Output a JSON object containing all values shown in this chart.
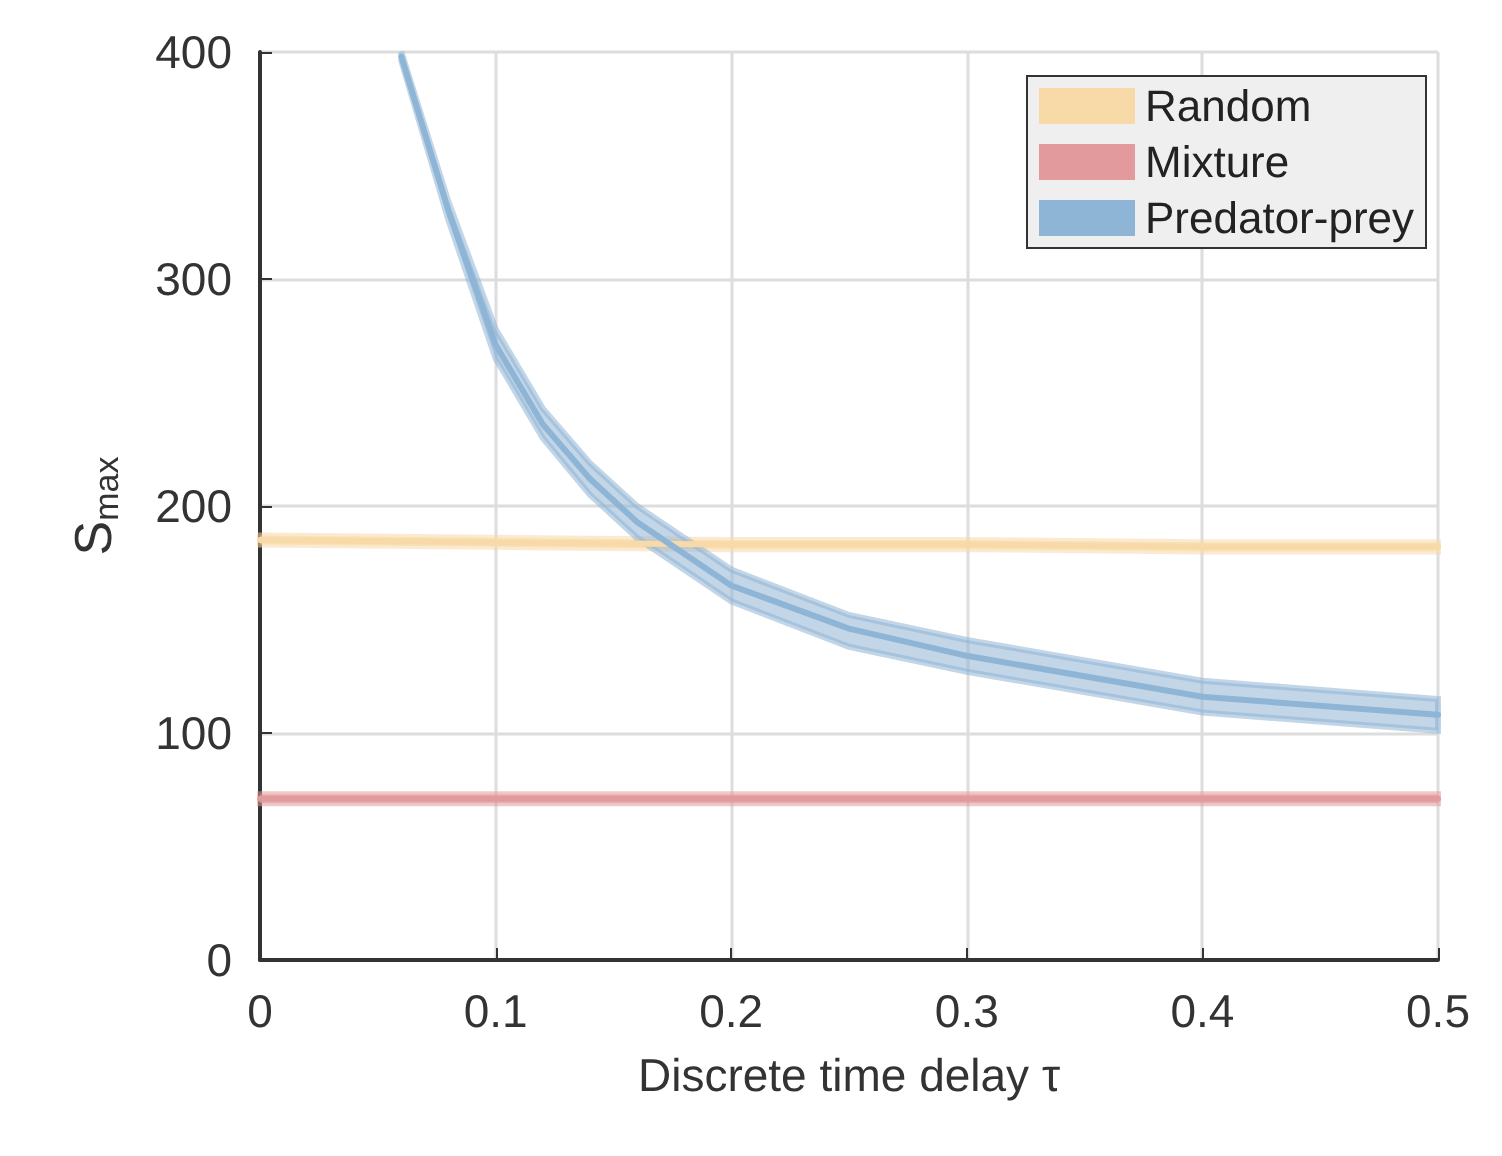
{
  "chart_data": {
    "type": "line",
    "xlabel": "Discrete time delay τ",
    "ylabel": "S$_{max}$",
    "xlim": [
      0,
      0.5
    ],
    "xticks": [
      0,
      0.1,
      0.2,
      0.3,
      0.4,
      0.5
    ],
    "ylim": [
      0,
      400
    ],
    "yticks": [
      0,
      100,
      200,
      300,
      400
    ],
    "grid": true,
    "legend": "top right",
    "series": [
      {
        "name": "Random",
        "color": "#f8d9a8",
        "x": [
          0,
          0.1,
          0.2,
          0.3,
          0.4,
          0.5
        ],
        "values": [
          185,
          184,
          183,
          183,
          182,
          182
        ],
        "lower": [
          183,
          182,
          181,
          181,
          180,
          180
        ],
        "upper": [
          187,
          186,
          185,
          185,
          184,
          184
        ]
      },
      {
        "name": "Mixture",
        "color": "#e29a9c",
        "x": [
          0,
          0.1,
          0.2,
          0.3,
          0.4,
          0.5
        ],
        "values": [
          71,
          71,
          71,
          71,
          71,
          71
        ],
        "lower": [
          69,
          69,
          69,
          69,
          69,
          69
        ],
        "upper": [
          73,
          73,
          73,
          73,
          73,
          73
        ]
      },
      {
        "name": "Predator-prey",
        "color": "#8fb5d6",
        "x": [
          0.06,
          0.08,
          0.1,
          0.12,
          0.14,
          0.16,
          0.2,
          0.25,
          0.3,
          0.4,
          0.5
        ],
        "values": [
          398,
          330,
          271,
          236,
          212,
          193,
          165,
          146,
          134,
          116,
          108
        ],
        "lower": [
          396,
          326,
          265,
          230,
          205,
          186,
          158,
          138,
          127,
          109,
          101
        ],
        "upper": [
          400,
          334,
          278,
          243,
          219,
          200,
          172,
          152,
          141,
          123,
          115
        ]
      }
    ]
  }
}
